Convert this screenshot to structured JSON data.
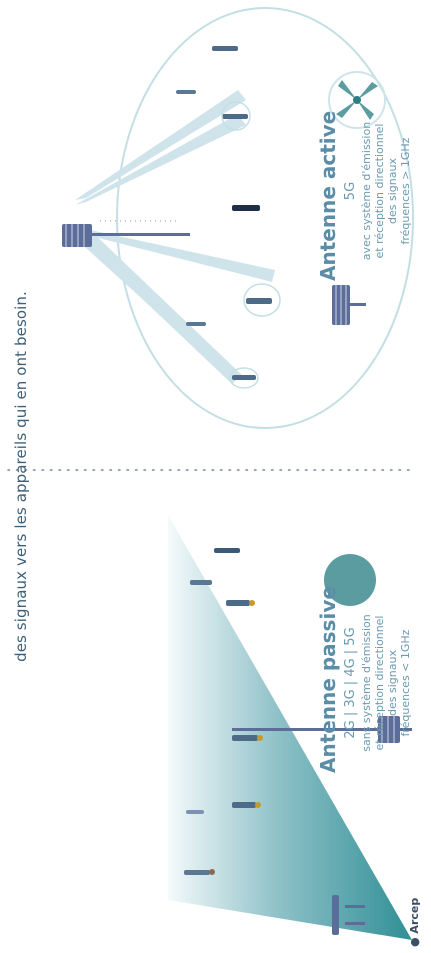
{
  "caption": "des signaux vers les appareils qui en ont besoin.",
  "passive": {
    "title": "Antenne passive",
    "generations": "2G | 3G | 4G | 5G",
    "lines": [
      "sans système d'émission",
      "et réception directionnel",
      "des signaux",
      "fréquences < 1GHz"
    ]
  },
  "active": {
    "title": "Antenne active",
    "generations": "5G",
    "lines": [
      "avec système d'émission",
      "et réception directionnel",
      "des signaux",
      "fréquences > 1GHz"
    ]
  },
  "logo": "● Arcep",
  "colors": {
    "teal": "#3e8f94",
    "beam": "#cfe4ea",
    "tower": "#5d6d9a",
    "text": "#5b8ea6"
  }
}
